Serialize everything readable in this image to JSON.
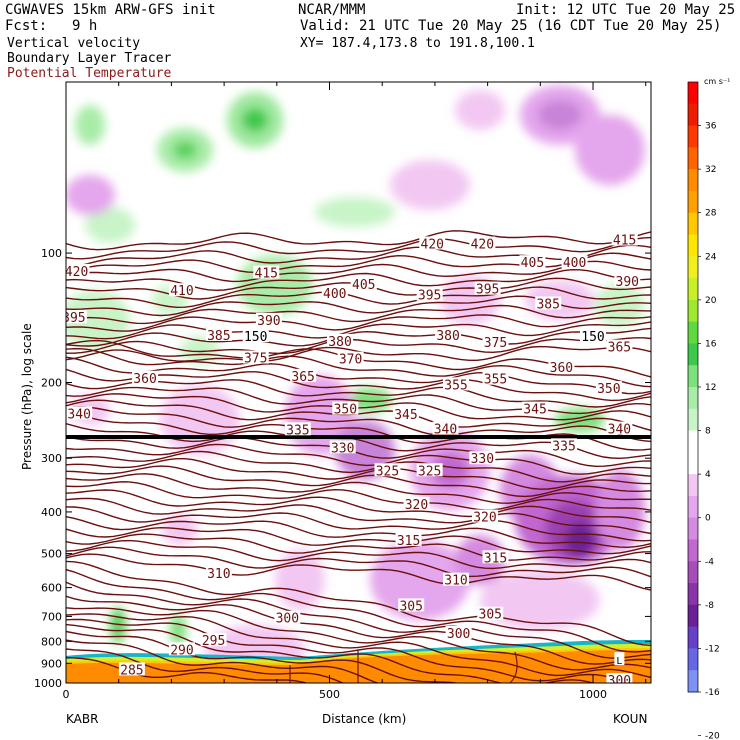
{
  "header": {
    "model": "CGWAVES 15km ARW-GFS init",
    "fcst_label": "Fcst:",
    "fcst_value": "9 h",
    "org": "NCAR/MMM",
    "init": "Init: 12 UTC Tue 20 May 25",
    "valid": "Valid: 21 UTC Tue 20 May 25 (16 CDT Tue 20 May 25)",
    "xy": "XY= 187.4,173.8 to 191.8,100.1",
    "field1": "Vertical velocity",
    "field2": "Boundary Layer Tracer",
    "field3": "Potential Temperature",
    "field3_color": "#8b1a1a"
  },
  "chart_data": {
    "type": "cross-section",
    "title": "Vertical velocity / Boundary Layer Tracer / Potential Temperature",
    "xlabel": "Distance (km)",
    "ylabel": "Pressure (hPa), log scale",
    "x_ticks": [
      "0",
      "500",
      "1000"
    ],
    "x_range_km": [
      0,
      1110
    ],
    "x_end_left": "KABR",
    "x_end_right": "KOUN",
    "y_ticks": [
      "100",
      "200",
      "300",
      "400",
      "500",
      "600",
      "700",
      "800",
      "900",
      "1000"
    ],
    "y_range_hpa": [
      1000,
      40
    ],
    "colorbar": {
      "units": "cm s⁻¹",
      "labels": [
        "36",
        "32",
        "28",
        "24",
        "20",
        "16",
        "12",
        "8",
        "4",
        "0",
        "-4",
        "-8",
        "-12",
        "-16",
        "-20"
      ],
      "colors": [
        "#ff0000",
        "#ee1c00",
        "#ff3a00",
        "#ff6400",
        "#ff8c00",
        "#ffa000",
        "#ffc800",
        "#ffe600",
        "#f0f020",
        "#c8f028",
        "#9ee830",
        "#62d840",
        "#3cc84a",
        "#7ce07c",
        "#a8eca8",
        "#c8f4c8",
        "#ffffff",
        "#ffffff",
        "#f2c8f2",
        "#e4a6ec",
        "#d48ae0",
        "#c068d0",
        "#a84cbc",
        "#8a34a8",
        "#6a2096",
        "#6640c8",
        "#6666e6",
        "#7d92f2"
      ]
    },
    "theta_labels": [
      {
        "km": 20,
        "hpa": 110,
        "value": "420"
      },
      {
        "km": 220,
        "hpa": 122,
        "value": "410"
      },
      {
        "km": 380,
        "hpa": 111,
        "value": "415"
      },
      {
        "km": 1060,
        "hpa": 93,
        "value": "415"
      },
      {
        "km": 695,
        "hpa": 95,
        "value": "420"
      },
      {
        "km": 790,
        "hpa": 95,
        "value": "420"
      },
      {
        "km": 885,
        "hpa": 105,
        "value": "405"
      },
      {
        "km": 965,
        "hpa": 105,
        "value": "400"
      },
      {
        "km": 1065,
        "hpa": 116,
        "value": "390"
      },
      {
        "km": 15,
        "hpa": 141,
        "value": "395"
      },
      {
        "km": 510,
        "hpa": 124,
        "value": "400"
      },
      {
        "km": 565,
        "hpa": 118,
        "value": "405"
      },
      {
        "km": 690,
        "hpa": 125,
        "value": "395"
      },
      {
        "km": 800,
        "hpa": 121,
        "value": "395"
      },
      {
        "km": 915,
        "hpa": 131,
        "value": "385"
      },
      {
        "km": 385,
        "hpa": 143,
        "value": "390"
      },
      {
        "km": 290,
        "hpa": 155,
        "value": "385"
      },
      {
        "km": 520,
        "hpa": 160,
        "value": "380"
      },
      {
        "km": 725,
        "hpa": 155,
        "value": "380"
      },
      {
        "km": 815,
        "hpa": 161,
        "value": "375"
      },
      {
        "km": 1050,
        "hpa": 165,
        "value": "365"
      },
      {
        "km": 360,
        "hpa": 175,
        "value": "375"
      },
      {
        "km": 540,
        "hpa": 176,
        "value": "370"
      },
      {
        "km": 940,
        "hpa": 184,
        "value": "360"
      },
      {
        "km": 150,
        "hpa": 195,
        "value": "360"
      },
      {
        "km": 450,
        "hpa": 193,
        "value": "365"
      },
      {
        "km": 740,
        "hpa": 202,
        "value": "355"
      },
      {
        "km": 815,
        "hpa": 196,
        "value": "355"
      },
      {
        "km": 1030,
        "hpa": 206,
        "value": "350"
      },
      {
        "km": 530,
        "hpa": 230,
        "value": "350"
      },
      {
        "km": 645,
        "hpa": 237,
        "value": "345"
      },
      {
        "km": 890,
        "hpa": 230,
        "value": "345"
      },
      {
        "km": 25,
        "hpa": 236,
        "value": "340"
      },
      {
        "km": 720,
        "hpa": 256,
        "value": "340"
      },
      {
        "km": 1050,
        "hpa": 256,
        "value": "340"
      },
      {
        "km": 440,
        "hpa": 257,
        "value": "335"
      },
      {
        "km": 945,
        "hpa": 280,
        "value": "335"
      },
      {
        "km": 525,
        "hpa": 283,
        "value": "330"
      },
      {
        "km": 790,
        "hpa": 300,
        "value": "330"
      },
      {
        "km": 610,
        "hpa": 320,
        "value": "325"
      },
      {
        "km": 690,
        "hpa": 320,
        "value": "325"
      },
      {
        "km": 665,
        "hpa": 383,
        "value": "320"
      },
      {
        "km": 795,
        "hpa": 410,
        "value": "320"
      },
      {
        "km": 650,
        "hpa": 465,
        "value": "315"
      },
      {
        "km": 815,
        "hpa": 510,
        "value": "315"
      },
      {
        "km": 290,
        "hpa": 555,
        "value": "310"
      },
      {
        "km": 740,
        "hpa": 575,
        "value": "310"
      },
      {
        "km": 655,
        "hpa": 660,
        "value": "305"
      },
      {
        "km": 805,
        "hpa": 690,
        "value": "305"
      },
      {
        "km": 420,
        "hpa": 705,
        "value": "300"
      },
      {
        "km": 745,
        "hpa": 765,
        "value": "300"
      },
      {
        "km": 1050,
        "hpa": 985,
        "value": "300"
      },
      {
        "km": 280,
        "hpa": 795,
        "value": "295"
      },
      {
        "km": 220,
        "hpa": 835,
        "value": "290"
      },
      {
        "km": 125,
        "hpa": 930,
        "value": "285"
      }
    ],
    "embedded_labels": [
      {
        "km": 360,
        "hpa": 156,
        "value": "150"
      },
      {
        "km": 1000,
        "hpa": 156,
        "value": "150"
      },
      {
        "km": 1050,
        "hpa": 880,
        "value": "L"
      }
    ]
  }
}
